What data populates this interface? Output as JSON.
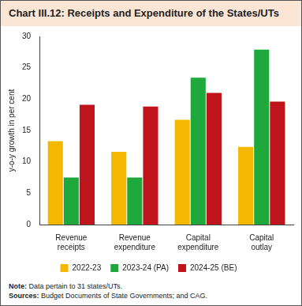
{
  "chart_data": {
    "type": "bar",
    "title": "Chart III.12: Receipts and Expenditure of the States/UTs",
    "y_label": "y-o-y growth in per cent",
    "categories": [
      "Revenue receipts",
      "Revenue expenditure",
      "Capital expenditure",
      "Capital outlay"
    ],
    "series": [
      {
        "name": "2022-23",
        "color": "#f5b800",
        "values": [
          13.3,
          11.6,
          16.7,
          12.4
        ]
      },
      {
        "name": "2023-24 (PA)",
        "color": "#1fa83c",
        "values": [
          7.5,
          7.5,
          23.4,
          27.9
        ]
      },
      {
        "name": "2024-25 (BE)",
        "color": "#c0141c",
        "values": [
          19.1,
          18.8,
          21.0,
          19.6
        ]
      }
    ],
    "ylim": [
      0,
      30
    ],
    "yticks": [
      0,
      5,
      10,
      15,
      20,
      25,
      30
    ],
    "grid": false,
    "legend": "bottom",
    "note": {
      "label": "Note:",
      "text": "Data pertain to 31 states/UTs."
    },
    "source": {
      "label": "Sources:",
      "text": "Budget Documents of State Governments; and CAG."
    }
  }
}
